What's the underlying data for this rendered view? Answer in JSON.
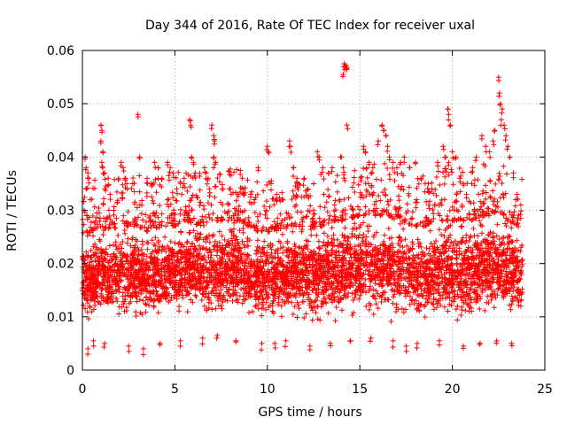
{
  "chart_data": {
    "type": "scatter",
    "title": "Day 344 of 2016, Rate Of TEC Index for receiver uxal",
    "xlabel": "GPS time / hours",
    "ylabel": "ROTI / TECUs",
    "xlim": [
      0,
      25
    ],
    "ylim": [
      0,
      0.06
    ],
    "xticks": [
      0,
      5,
      10,
      15,
      20,
      25
    ],
    "yticks": [
      0,
      0.01,
      0.02,
      0.03,
      0.04,
      0.05,
      0.06
    ],
    "xtick_labels": [
      "0",
      "5",
      "10",
      "15",
      "20",
      "25"
    ],
    "ytick_labels": [
      "0",
      "0.01",
      "0.02",
      "0.03",
      "0.04",
      "0.05",
      "0.06"
    ],
    "grid": true,
    "marker": "+",
    "color": "#ff0000",
    "series": [
      {
        "x_range": [
          0,
          23.8
        ],
        "envelope": [
          [
            0.0,
            0.0085,
            0.025
          ],
          [
            0.5,
            0.008,
            0.026
          ],
          [
            1.0,
            0.008,
            0.027
          ],
          [
            1.5,
            0.0075,
            0.026
          ],
          [
            2.0,
            0.008,
            0.027
          ],
          [
            2.5,
            0.0085,
            0.027
          ],
          [
            3.0,
            0.008,
            0.027
          ],
          [
            3.5,
            0.0075,
            0.026
          ],
          [
            4.0,
            0.008,
            0.0265
          ],
          [
            4.5,
            0.0085,
            0.027
          ],
          [
            5.0,
            0.009,
            0.027
          ],
          [
            5.5,
            0.009,
            0.028
          ],
          [
            6.0,
            0.009,
            0.0275
          ],
          [
            6.5,
            0.0085,
            0.027
          ],
          [
            7.0,
            0.0085,
            0.028
          ],
          [
            7.5,
            0.0085,
            0.028
          ],
          [
            8.0,
            0.009,
            0.028
          ],
          [
            8.5,
            0.0085,
            0.028
          ],
          [
            9.0,
            0.0085,
            0.027
          ],
          [
            9.5,
            0.008,
            0.026
          ],
          [
            10.0,
            0.0085,
            0.026
          ],
          [
            10.5,
            0.008,
            0.026
          ],
          [
            11.0,
            0.0085,
            0.027
          ],
          [
            11.5,
            0.008,
            0.027
          ],
          [
            12.0,
            0.008,
            0.027
          ],
          [
            12.5,
            0.008,
            0.027
          ],
          [
            13.0,
            0.008,
            0.027
          ],
          [
            13.5,
            0.0085,
            0.028
          ],
          [
            14.0,
            0.0085,
            0.028
          ],
          [
            14.5,
            0.009,
            0.0285
          ],
          [
            15.0,
            0.009,
            0.029
          ],
          [
            15.5,
            0.009,
            0.029
          ],
          [
            16.0,
            0.009,
            0.029
          ],
          [
            16.5,
            0.0085,
            0.029
          ],
          [
            17.0,
            0.0085,
            0.028
          ],
          [
            17.5,
            0.0085,
            0.0275
          ],
          [
            18.0,
            0.008,
            0.027
          ],
          [
            18.5,
            0.008,
            0.027
          ],
          [
            19.0,
            0.0085,
            0.028
          ],
          [
            19.5,
            0.0085,
            0.028
          ],
          [
            20.0,
            0.008,
            0.028
          ],
          [
            20.5,
            0.008,
            0.028
          ],
          [
            21.0,
            0.008,
            0.028
          ],
          [
            21.5,
            0.0085,
            0.029
          ],
          [
            22.0,
            0.0085,
            0.029
          ],
          [
            22.5,
            0.009,
            0.03
          ],
          [
            23.0,
            0.0085,
            0.028
          ],
          [
            23.5,
            0.008,
            0.027
          ],
          [
            23.8,
            0.008,
            0.026
          ]
        ],
        "outliers": [
          [
            0.15,
            0.04
          ],
          [
            0.2,
            0.038
          ],
          [
            0.3,
            0.037
          ],
          [
            0.35,
            0.036
          ],
          [
            0.1,
            0.03
          ],
          [
            0.25,
            0.029
          ],
          [
            1.0,
            0.046
          ],
          [
            1.05,
            0.045
          ],
          [
            1.0,
            0.043
          ],
          [
            1.1,
            0.041
          ],
          [
            1.05,
            0.039
          ],
          [
            1.1,
            0.038
          ],
          [
            1.2,
            0.037
          ],
          [
            1.4,
            0.036
          ],
          [
            1.5,
            0.033
          ],
          [
            1.7,
            0.03
          ],
          [
            2.1,
            0.039
          ],
          [
            2.2,
            0.038
          ],
          [
            2.3,
            0.036
          ],
          [
            2.4,
            0.035
          ],
          [
            3.0,
            0.048
          ],
          [
            3.1,
            0.04
          ],
          [
            3.5,
            0.036
          ],
          [
            3.7,
            0.035
          ],
          [
            3.9,
            0.039
          ],
          [
            4.1,
            0.038
          ],
          [
            4.3,
            0.036
          ],
          [
            4.6,
            0.039
          ],
          [
            4.75,
            0.038
          ],
          [
            4.9,
            0.037
          ],
          [
            5.1,
            0.034
          ],
          [
            5.5,
            0.036
          ],
          [
            5.8,
            0.047
          ],
          [
            5.85,
            0.046
          ],
          [
            5.9,
            0.04
          ],
          [
            6.0,
            0.039
          ],
          [
            6.1,
            0.037
          ],
          [
            6.6,
            0.038
          ],
          [
            6.7,
            0.037
          ],
          [
            6.8,
            0.036
          ],
          [
            7.0,
            0.046
          ],
          [
            7.1,
            0.044
          ],
          [
            7.15,
            0.043
          ],
          [
            7.1,
            0.04
          ],
          [
            7.2,
            0.039
          ],
          [
            7.6,
            0.034
          ],
          [
            8.0,
            0.034
          ],
          [
            8.4,
            0.033
          ],
          [
            8.7,
            0.034
          ],
          [
            9.5,
            0.038
          ],
          [
            9.1,
            0.033
          ],
          [
            9.3,
            0.032
          ],
          [
            10.0,
            0.042
          ],
          [
            10.05,
            0.041
          ],
          [
            10.2,
            0.035
          ],
          [
            10.5,
            0.033
          ],
          [
            10.8,
            0.032
          ],
          [
            11.2,
            0.043
          ],
          [
            11.25,
            0.042
          ],
          [
            11.4,
            0.038
          ],
          [
            11.6,
            0.036
          ],
          [
            12.0,
            0.036
          ],
          [
            12.2,
            0.034
          ],
          [
            12.5,
            0.035
          ],
          [
            12.7,
            0.041
          ],
          [
            12.8,
            0.04
          ],
          [
            13.0,
            0.038
          ],
          [
            13.3,
            0.037
          ],
          [
            13.5,
            0.038
          ],
          [
            14.15,
            0.0575
          ],
          [
            14.2,
            0.057
          ],
          [
            14.25,
            0.0572
          ],
          [
            14.3,
            0.0568
          ],
          [
            14.1,
            0.0555
          ],
          [
            14.3,
            0.046
          ],
          [
            14.0,
            0.04
          ],
          [
            14.1,
            0.038
          ],
          [
            15.2,
            0.042
          ],
          [
            15.3,
            0.041
          ],
          [
            15.5,
            0.039
          ],
          [
            15.7,
            0.038
          ],
          [
            16.0,
            0.043
          ],
          [
            16.2,
            0.046
          ],
          [
            16.3,
            0.045
          ],
          [
            16.4,
            0.044
          ],
          [
            16.5,
            0.042
          ],
          [
            16.6,
            0.04
          ],
          [
            16.8,
            0.039
          ],
          [
            17.0,
            0.038
          ],
          [
            17.2,
            0.039
          ],
          [
            17.4,
            0.04
          ],
          [
            17.7,
            0.038
          ],
          [
            18.0,
            0.039
          ],
          [
            18.3,
            0.036
          ],
          [
            18.7,
            0.035
          ],
          [
            19.2,
            0.039
          ],
          [
            19.5,
            0.042
          ],
          [
            19.6,
            0.04
          ],
          [
            19.8,
            0.039
          ],
          [
            19.75,
            0.049
          ],
          [
            19.8,
            0.048
          ],
          [
            19.9,
            0.046
          ],
          [
            20.0,
            0.041
          ],
          [
            20.2,
            0.04
          ],
          [
            20.4,
            0.036
          ],
          [
            20.6,
            0.035
          ],
          [
            21.1,
            0.038
          ],
          [
            21.3,
            0.04
          ],
          [
            21.6,
            0.044
          ],
          [
            21.8,
            0.042
          ],
          [
            22.0,
            0.041
          ],
          [
            22.2,
            0.043
          ],
          [
            22.3,
            0.045
          ],
          [
            22.5,
            0.055
          ],
          [
            22.55,
            0.052
          ],
          [
            22.6,
            0.05
          ],
          [
            22.7,
            0.049
          ],
          [
            22.65,
            0.047
          ],
          [
            22.8,
            0.046
          ],
          [
            22.9,
            0.044
          ],
          [
            23.0,
            0.042
          ],
          [
            23.1,
            0.04
          ],
          [
            23.3,
            0.037
          ],
          [
            23.5,
            0.033
          ],
          [
            23.7,
            0.031
          ],
          [
            0.6,
            0.0055
          ],
          [
            1.2,
            0.005
          ],
          [
            2.5,
            0.0045
          ],
          [
            3.3,
            0.004
          ],
          [
            4.2,
            0.005
          ],
          [
            5.3,
            0.0055
          ],
          [
            6.5,
            0.006
          ],
          [
            7.3,
            0.0065
          ],
          [
            8.3,
            0.0055
          ],
          [
            9.7,
            0.005
          ],
          [
            11.0,
            0.0055
          ],
          [
            12.3,
            0.0045
          ],
          [
            13.4,
            0.005
          ],
          [
            14.5,
            0.0055
          ],
          [
            15.6,
            0.006
          ],
          [
            16.8,
            0.0055
          ],
          [
            18.1,
            0.005
          ],
          [
            19.3,
            0.0055
          ],
          [
            20.6,
            0.0045
          ],
          [
            21.5,
            0.005
          ],
          [
            22.4,
            0.0055
          ],
          [
            23.2,
            0.005
          ],
          [
            0.3,
            0.004
          ],
          [
            17.5,
            0.0045
          ],
          [
            10.4,
            0.005
          ]
        ]
      }
    ]
  }
}
